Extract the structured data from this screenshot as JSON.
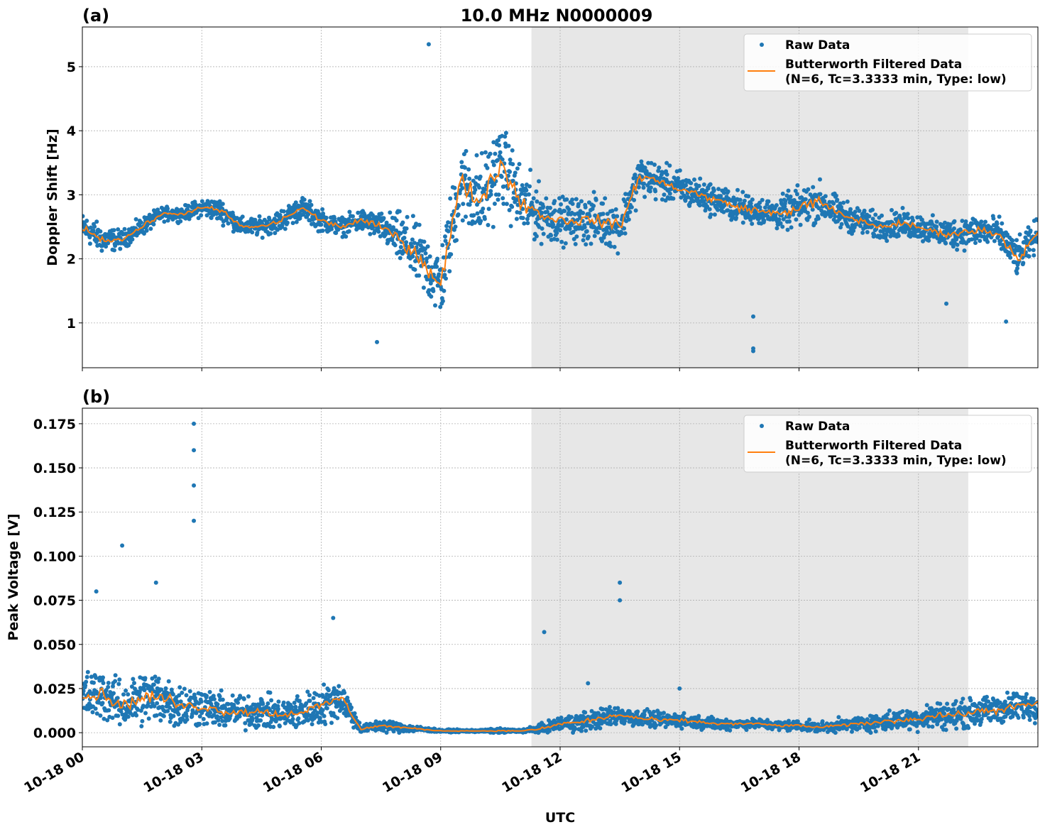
{
  "chart_data": [
    {
      "type": "scatter",
      "panel_label": "(a)",
      "title": "10.0 MHz N0000009",
      "xlabel": "",
      "ylabel": "Doppler Shift [Hz]",
      "xlim_hours": [
        0,
        24
      ],
      "ylim": [
        0.3,
        5.62
      ],
      "yticks": [
        1,
        2,
        3,
        4,
        5
      ],
      "ytick_labels": [
        "1",
        "2",
        "3",
        "4",
        "5"
      ],
      "grid": true,
      "shaded_hours": [
        11.28,
        22.25
      ],
      "legend": {
        "placement": "top-right",
        "entries": [
          "Raw Data",
          "Butterworth Filtered Data\n(N=6, Tc=3.3333 min, Type: low)"
        ]
      },
      "legend_lines": [
        "Raw Data",
        "Butterworth Filtered Data",
        "(N=6, Tc=3.3333 min, Type: low)"
      ],
      "x_hours_step": 0.5,
      "filtered": [
        2.5,
        2.3,
        2.3,
        2.5,
        2.7,
        2.7,
        2.8,
        2.75,
        2.5,
        2.5,
        2.6,
        2.8,
        2.6,
        2.5,
        2.6,
        2.5,
        2.3,
        2.0,
        1.6,
        3.2,
        2.9,
        3.5,
        2.9,
        2.7,
        2.6,
        2.6,
        2.6,
        2.5,
        3.3,
        3.2,
        3.1,
        3.0,
        2.9,
        2.8,
        2.75,
        2.7,
        2.8,
        2.9,
        2.7,
        2.6,
        2.5,
        2.55,
        2.5,
        2.4,
        2.4,
        2.45,
        2.4,
        2.0,
        2.4
      ],
      "spread": [
        0.3,
        0.3,
        0.2,
        0.2,
        0.15,
        0.15,
        0.2,
        0.25,
        0.2,
        0.2,
        0.25,
        0.25,
        0.25,
        0.2,
        0.25,
        0.3,
        0.6,
        0.7,
        0.8,
        0.9,
        1.0,
        0.9,
        0.8,
        0.6,
        0.5,
        0.5,
        0.55,
        0.5,
        0.45,
        0.4,
        0.4,
        0.35,
        0.35,
        0.35,
        0.3,
        0.35,
        0.45,
        0.45,
        0.35,
        0.3,
        0.3,
        0.3,
        0.3,
        0.3,
        0.35,
        0.35,
        0.35,
        0.4,
        0.35
      ],
      "outliers": [
        [
          7.4,
          0.7
        ],
        [
          16.85,
          0.56
        ],
        [
          16.85,
          0.6
        ],
        [
          16.85,
          1.1
        ],
        [
          8.7,
          5.35
        ],
        [
          21.7,
          1.3
        ],
        [
          23.2,
          1.02
        ]
      ]
    },
    {
      "type": "scatter",
      "panel_label": "(b)",
      "xlabel": "UTC",
      "ylabel": "Peak Voltage [V]",
      "xlim_hours": [
        0,
        24
      ],
      "ylim": [
        -0.008,
        0.1838
      ],
      "yticks": [
        0,
        0.025,
        0.05,
        0.075,
        0.1,
        0.125,
        0.15,
        0.175
      ],
      "ytick_labels": [
        "0.000",
        "0.025",
        "0.050",
        "0.075",
        "0.100",
        "0.125",
        "0.150",
        "0.175"
      ],
      "xtick_labels": [
        "10-18 00",
        "10-18 03",
        "10-18 06",
        "10-18 09",
        "10-18 12",
        "10-18 15",
        "10-18 18",
        "10-18 21"
      ],
      "xtick_hours": [
        0,
        3,
        6,
        9,
        12,
        15,
        18,
        21
      ],
      "grid": true,
      "shaded_hours": [
        11.28,
        22.25
      ],
      "legend": {
        "placement": "top-right",
        "entries": [
          "Raw Data",
          "Butterworth Filtered Data\n(N=6, Tc=3.3333 min, Type: low)"
        ]
      },
      "legend_lines": [
        "Raw Data",
        "Butterworth Filtered Data",
        "(N=6, Tc=3.3333 min, Type: low)"
      ],
      "x_hours_step": 0.5,
      "filtered": [
        0.02,
        0.022,
        0.015,
        0.02,
        0.02,
        0.015,
        0.015,
        0.012,
        0.012,
        0.012,
        0.01,
        0.012,
        0.015,
        0.02,
        0.002,
        0.004,
        0.003,
        0.002,
        0.001,
        0.001,
        0.001,
        0.001,
        0.001,
        0.002,
        0.005,
        0.006,
        0.008,
        0.01,
        0.008,
        0.007,
        0.007,
        0.006,
        0.005,
        0.005,
        0.005,
        0.004,
        0.004,
        0.003,
        0.004,
        0.005,
        0.006,
        0.007,
        0.008,
        0.01,
        0.01,
        0.012,
        0.013,
        0.015,
        0.016
      ],
      "spread": [
        0.02,
        0.02,
        0.018,
        0.022,
        0.022,
        0.018,
        0.016,
        0.014,
        0.014,
        0.014,
        0.012,
        0.014,
        0.016,
        0.016,
        0.003,
        0.005,
        0.004,
        0.002,
        0.001,
        0.001,
        0.001,
        0.002,
        0.001,
        0.004,
        0.006,
        0.008,
        0.008,
        0.008,
        0.007,
        0.006,
        0.006,
        0.005,
        0.005,
        0.004,
        0.004,
        0.004,
        0.004,
        0.004,
        0.005,
        0.006,
        0.007,
        0.008,
        0.009,
        0.011,
        0.011,
        0.011,
        0.012,
        0.012,
        0.012
      ],
      "spikes": [
        [
          1.0,
          0.106
        ],
        [
          0.35,
          0.08
        ],
        [
          1.85,
          0.085
        ],
        [
          2.8,
          0.175
        ],
        [
          2.8,
          0.16
        ],
        [
          2.8,
          0.14
        ],
        [
          2.8,
          0.12
        ],
        [
          6.3,
          0.065
        ],
        [
          11.6,
          0.057
        ],
        [
          13.5,
          0.085
        ],
        [
          13.5,
          0.075
        ],
        [
          12.7,
          0.028
        ],
        [
          15,
          0.025
        ]
      ]
    }
  ]
}
